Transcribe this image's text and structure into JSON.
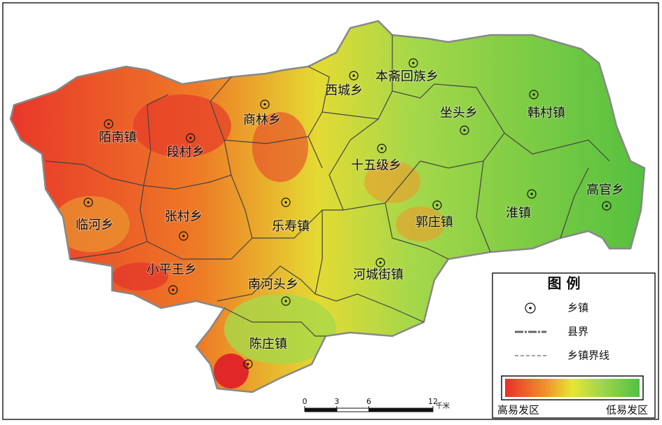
{
  "towns": [
    "陌南镇",
    "段村乡",
    "商林乡",
    "西城乡",
    "本斋回族乡",
    "坐头乡",
    "韩村镇",
    "十五级乡",
    "高官乡",
    "淮镇",
    "郭庄镇",
    "临河乡",
    "张村乡",
    "乐寿镇",
    "小平王乡",
    "河城街镇",
    "南河头乡",
    "陈庄镇"
  ],
  "legend": {
    "title": "图 例",
    "items": [
      "乡镇",
      "县界",
      "乡镇界线"
    ],
    "high": "高易发区",
    "low": "低易发区"
  },
  "scale": {
    "ticks": [
      0,
      3,
      6,
      12
    ],
    "unit": "千米"
  }
}
